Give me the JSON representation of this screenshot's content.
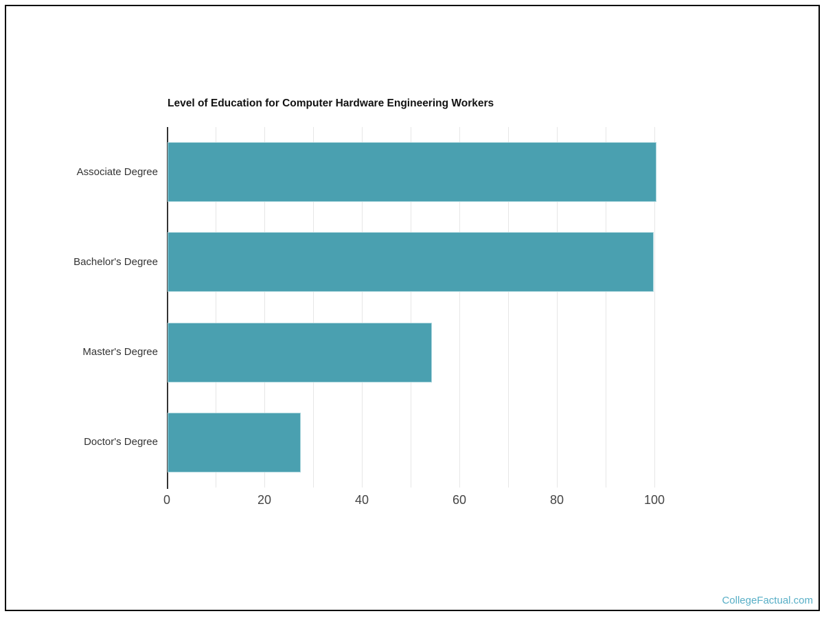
{
  "watermark": {
    "label": "CollegeFactual.com"
  },
  "chart_data": {
    "type": "bar",
    "orientation": "horizontal",
    "title": "Level of Education for Computer Hardware Engineering Workers",
    "categories": [
      "Associate Degree",
      "Bachelor's Degree",
      "Master's Degree",
      "Doctor's Degree"
    ],
    "values": [
      100,
      99.4,
      54,
      27
    ],
    "xlabel": "",
    "ylabel": "",
    "xlim": [
      0,
      100
    ],
    "x_ticks": [
      0,
      20,
      40,
      60,
      80,
      100
    ],
    "minor_tick_interval": 10,
    "grid": true,
    "legend": false,
    "colors": {
      "bar": "#4aa0b0",
      "bar_edge": "#aad5dc",
      "axis_line": "#333333",
      "gridline": "#e6e6e6",
      "title": "#111111",
      "category_label": "#333333",
      "tick_label": "#444444",
      "watermark": "#57aec6",
      "frame_border": "#000000"
    }
  }
}
